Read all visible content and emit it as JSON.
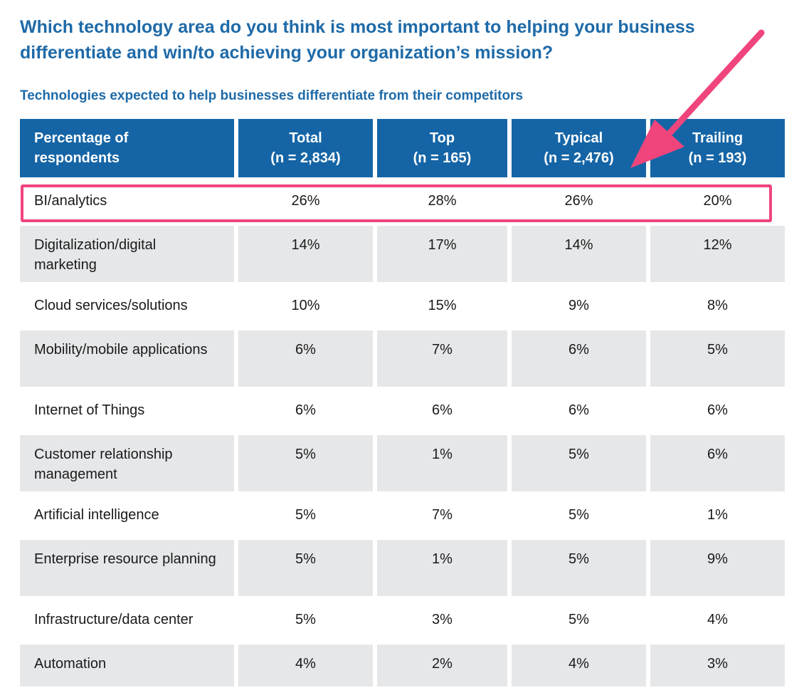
{
  "question": "Which technology area do you think is most important to helping your business differentiate and win/to achieving your organization’s mission?",
  "subtitle": "Technologies expected to help businesses differentiate from their competitors",
  "colors": {
    "title": "#1e6aa8",
    "header_bg": "#1565a6",
    "header_text": "#ffffff",
    "row_alt_bg": "#e6e7e9",
    "highlight": "#f0457c"
  },
  "highlighted_row": "BI/analytics",
  "chart_data": {
    "type": "table",
    "title": "Technologies expected to help businesses differentiate from their competitors",
    "columns": [
      {
        "line1": "Percentage of",
        "line2": "respondents"
      },
      {
        "line1": "Total",
        "line2": "(n = 2,834)"
      },
      {
        "line1": "Top",
        "line2": "(n = 165)"
      },
      {
        "line1": "Typical",
        "line2": "(n = 2,476)"
      },
      {
        "line1": "Trailing",
        "line2": "(n = 193)"
      }
    ],
    "rows": [
      {
        "label": "BI/analytics",
        "total": "26%",
        "top": "28%",
        "typical": "26%",
        "trailing": "20%"
      },
      {
        "label": "Digitalization/digital marketing",
        "total": "14%",
        "top": "17%",
        "typical": "14%",
        "trailing": "12%"
      },
      {
        "label": "Cloud services/solutions",
        "total": "10%",
        "top": "15%",
        "typical": "9%",
        "trailing": "8%"
      },
      {
        "label": "Mobility/mobile applications",
        "total": "6%",
        "top": "7%",
        "typical": "6%",
        "trailing": "5%"
      },
      {
        "label": "Internet of Things",
        "total": "6%",
        "top": "6%",
        "typical": "6%",
        "trailing": "6%"
      },
      {
        "label": "Customer relationship management",
        "total": "5%",
        "top": "1%",
        "typical": "5%",
        "trailing": "6%"
      },
      {
        "label": "Artificial intelligence",
        "total": "5%",
        "top": "7%",
        "typical": "5%",
        "trailing": "1%"
      },
      {
        "label": "Enterprise resource planning",
        "total": "5%",
        "top": "1%",
        "typical": "5%",
        "trailing": "9%"
      },
      {
        "label": "Infrastructure/data center",
        "total": "5%",
        "top": "3%",
        "typical": "5%",
        "trailing": "4%"
      },
      {
        "label": "Automation",
        "total": "4%",
        "top": "2%",
        "typical": "4%",
        "trailing": "3%"
      }
    ]
  }
}
